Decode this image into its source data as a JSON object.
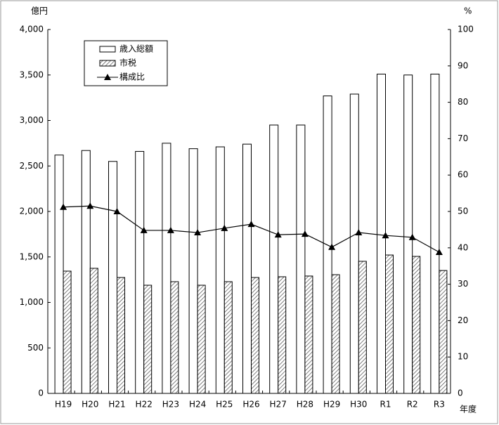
{
  "chart_data": {
    "type": "bar",
    "y_label": "億円",
    "y2_label": "%",
    "x_label": "年度",
    "categories": [
      "H19",
      "H20",
      "H21",
      "H22",
      "H23",
      "H24",
      "H25",
      "H26",
      "H27",
      "H28",
      "H29",
      "H30",
      "R1",
      "R2",
      "R3"
    ],
    "series": [
      {
        "name": "歳入総額",
        "type": "bar",
        "color": "#ffffff",
        "hatch": false,
        "values": [
          2620,
          2670,
          2550,
          2660,
          2750,
          2690,
          2710,
          2740,
          2950,
          2950,
          3270,
          3290,
          3510,
          3500,
          3510
        ]
      },
      {
        "name": "市税",
        "type": "bar",
        "color": "#ffffff",
        "hatch": true,
        "values": [
          1344,
          1375,
          1274,
          1189,
          1228,
          1189,
          1228,
          1274,
          1282,
          1290,
          1305,
          1452,
          1521,
          1506,
          1351
        ]
      },
      {
        "name": "構成比",
        "type": "line",
        "axis": "y2",
        "color": "#000000",
        "marker": "triangle",
        "values": [
          51.2,
          51.5,
          50.0,
          44.8,
          44.8,
          44.2,
          45.4,
          46.5,
          43.6,
          43.8,
          40.2,
          44.2,
          43.4,
          42.9,
          38.8
        ]
      }
    ],
    "ylim": [
      0,
      4000
    ],
    "yticks": [
      0,
      500,
      {
        "value": 1000,
        "label": "1,000"
      },
      {
        "value": 1500,
        "label": "1,500"
      },
      {
        "value": 2000,
        "label": "2,000"
      },
      {
        "value": 2500,
        "label": "2,500"
      },
      {
        "value": 3000,
        "label": "3,000"
      },
      {
        "value": 3500,
        "label": "3,500"
      },
      {
        "value": 4000,
        "label": "4,000"
      }
    ],
    "y2lim": [
      0,
      100
    ],
    "y2ticks": [
      0,
      10,
      20,
      30,
      40,
      50,
      60,
      70,
      80,
      90,
      100
    ],
    "grid": false,
    "legend": "top-left"
  }
}
